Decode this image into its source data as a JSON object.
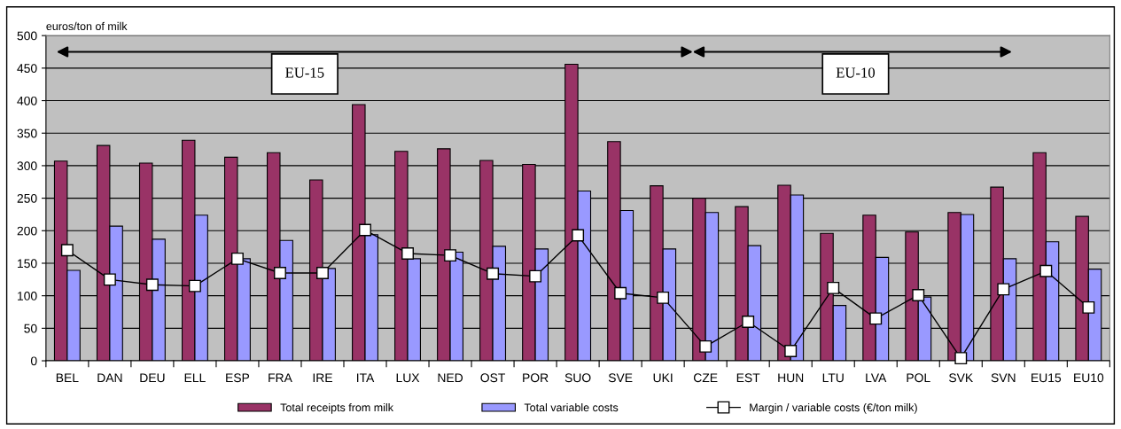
{
  "chart_data": {
    "type": "bar",
    "ylabel": "euros/ton of milk",
    "categories": [
      "BEL",
      "DAN",
      "DEU",
      "ELL",
      "ESP",
      "FRA",
      "IRE",
      "ITA",
      "LUX",
      "NED",
      "OST",
      "POR",
      "SUO",
      "SVE",
      "UKI",
      "CZE",
      "EST",
      "HUN",
      "LTU",
      "LVA",
      "POL",
      "SVK",
      "SVN",
      "EU15",
      "EU10"
    ],
    "series": [
      {
        "name": "Total receipts from milk",
        "color": "#993366",
        "values": [
          307,
          331,
          304,
          339,
          313,
          320,
          278,
          394,
          322,
          326,
          308,
          302,
          456,
          337,
          269,
          250,
          237,
          270,
          196,
          224,
          198,
          228,
          267,
          320,
          222
        ]
      },
      {
        "name": "Total variable costs",
        "color": "#9999ff",
        "values": [
          139,
          207,
          187,
          224,
          157,
          185,
          142,
          194,
          157,
          167,
          176,
          172,
          261,
          231,
          172,
          228,
          177,
          255,
          85,
          159,
          98,
          225,
          157,
          183,
          141
        ]
      },
      {
        "name": "Margin / variable costs (€/ton milk)",
        "type": "line",
        "color": "#000000",
        "marker": "square",
        "values": [
          170,
          125,
          117,
          115,
          157,
          135,
          135,
          201,
          165,
          162,
          134,
          130,
          193,
          104,
          97,
          22,
          60,
          15,
          112,
          65,
          101,
          4,
          110,
          138,
          82
        ]
      }
    ],
    "annotations": [
      "EU-15",
      "EU-10"
    ],
    "ylim": [
      0,
      500
    ],
    "yticks": [
      0,
      50,
      100,
      150,
      200,
      250,
      300,
      350,
      400,
      450,
      500
    ],
    "grid": "y",
    "legend": "bottom"
  }
}
